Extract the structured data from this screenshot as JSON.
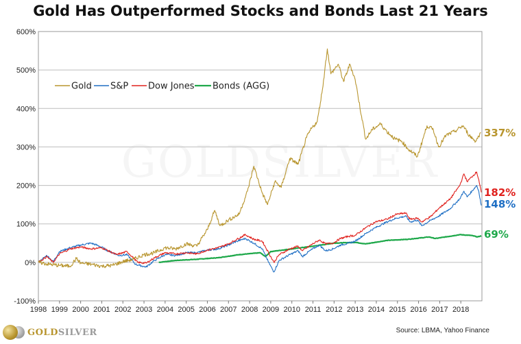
{
  "title": "Gold Has Outperformed Stocks and Bonds Last 21 Years",
  "source": "Source: LBMA, Yahoo Finance",
  "brand": {
    "gold": "GOLD",
    "silver": "SILVER"
  },
  "watermark": "GOLDSILVER",
  "chart_data": {
    "type": "line",
    "ylim": [
      -100,
      600
    ],
    "xlim": [
      1998,
      2019.0
    ],
    "y_ticks": [
      "-100%",
      "0%",
      "100%",
      "200%",
      "300%",
      "400%",
      "500%",
      "600%"
    ],
    "x_ticks": [
      "1998",
      "1999",
      "2000",
      "2001",
      "2002",
      "2003",
      "2004",
      "2005",
      "2006",
      "2007",
      "2008",
      "2009",
      "2010",
      "2011",
      "2012",
      "2013",
      "2014",
      "2015",
      "2016",
      "2017",
      "2018"
    ],
    "grid": "horizontal",
    "legend_position": "upper-left",
    "series": [
      {
        "name": "Gold",
        "color": "#b8952e",
        "end_label": "337%",
        "points": [
          [
            1998.0,
            0
          ],
          [
            1998.5,
            -5
          ],
          [
            1999.0,
            -8
          ],
          [
            1999.5,
            -10
          ],
          [
            1999.8,
            10
          ],
          [
            2000.0,
            -2
          ],
          [
            2000.5,
            -5
          ],
          [
            2001.0,
            -10
          ],
          [
            2001.5,
            -8
          ],
          [
            2002.0,
            2
          ],
          [
            2002.5,
            8
          ],
          [
            2003.0,
            20
          ],
          [
            2003.5,
            25
          ],
          [
            2004.0,
            38
          ],
          [
            2004.5,
            35
          ],
          [
            2005.0,
            48
          ],
          [
            2005.5,
            42
          ],
          [
            2006.0,
            85
          ],
          [
            2006.35,
            135
          ],
          [
            2006.6,
            95
          ],
          [
            2007.0,
            110
          ],
          [
            2007.5,
            125
          ],
          [
            2007.9,
            185
          ],
          [
            2008.2,
            250
          ],
          [
            2008.6,
            180
          ],
          [
            2008.85,
            150
          ],
          [
            2009.2,
            210
          ],
          [
            2009.5,
            195
          ],
          [
            2009.9,
            270
          ],
          [
            2010.3,
            255
          ],
          [
            2010.7,
            325
          ],
          [
            2010.95,
            350
          ],
          [
            2011.2,
            365
          ],
          [
            2011.45,
            450
          ],
          [
            2011.68,
            555
          ],
          [
            2011.85,
            490
          ],
          [
            2012.2,
            515
          ],
          [
            2012.45,
            470
          ],
          [
            2012.75,
            515
          ],
          [
            2013.0,
            475
          ],
          [
            2013.3,
            380
          ],
          [
            2013.5,
            320
          ],
          [
            2013.8,
            345
          ],
          [
            2014.2,
            360
          ],
          [
            2014.5,
            340
          ],
          [
            2014.9,
            320
          ],
          [
            2015.2,
            315
          ],
          [
            2015.5,
            295
          ],
          [
            2015.95,
            275
          ],
          [
            2016.4,
            355
          ],
          [
            2016.7,
            345
          ],
          [
            2016.95,
            300
          ],
          [
            2017.3,
            330
          ],
          [
            2017.7,
            340
          ],
          [
            2018.1,
            355
          ],
          [
            2018.4,
            330
          ],
          [
            2018.7,
            315
          ],
          [
            2018.95,
            337
          ]
        ]
      },
      {
        "name": "S&P",
        "color": "#1f6fc4",
        "end_label": "148%",
        "points": [
          [
            1998.0,
            0
          ],
          [
            1998.4,
            18
          ],
          [
            1998.7,
            2
          ],
          [
            1999.0,
            28
          ],
          [
            1999.5,
            38
          ],
          [
            2000.0,
            45
          ],
          [
            2000.5,
            50
          ],
          [
            2000.9,
            42
          ],
          [
            2001.3,
            30
          ],
          [
            2001.8,
            18
          ],
          [
            2002.2,
            20
          ],
          [
            2002.6,
            -5
          ],
          [
            2002.8,
            -8
          ],
          [
            2003.1,
            -12
          ],
          [
            2003.5,
            5
          ],
          [
            2004.0,
            20
          ],
          [
            2004.5,
            18
          ],
          [
            2005.0,
            25
          ],
          [
            2005.5,
            25
          ],
          [
            2006.0,
            32
          ],
          [
            2006.5,
            35
          ],
          [
            2007.0,
            45
          ],
          [
            2007.4,
            55
          ],
          [
            2007.8,
            62
          ],
          [
            2008.2,
            50
          ],
          [
            2008.6,
            35
          ],
          [
            2008.9,
            0
          ],
          [
            2009.15,
            -25
          ],
          [
            2009.4,
            5
          ],
          [
            2009.9,
            20
          ],
          [
            2010.3,
            30
          ],
          [
            2010.5,
            15
          ],
          [
            2010.9,
            32
          ],
          [
            2011.3,
            45
          ],
          [
            2011.6,
            30
          ],
          [
            2011.95,
            35
          ],
          [
            2012.3,
            45
          ],
          [
            2012.7,
            50
          ],
          [
            2013.0,
            55
          ],
          [
            2013.5,
            75
          ],
          [
            2013.95,
            90
          ],
          [
            2014.5,
            105
          ],
          [
            2014.95,
            115
          ],
          [
            2015.4,
            120
          ],
          [
            2015.6,
            105
          ],
          [
            2015.95,
            110
          ],
          [
            2016.15,
            95
          ],
          [
            2016.6,
            110
          ],
          [
            2016.95,
            120
          ],
          [
            2017.5,
            140
          ],
          [
            2017.95,
            165
          ],
          [
            2018.15,
            185
          ],
          [
            2018.3,
            170
          ],
          [
            2018.75,
            200
          ],
          [
            2018.85,
            185
          ],
          [
            2018.97,
            148
          ]
        ]
      },
      {
        "name": "Dow Jones",
        "color": "#e0201c",
        "end_label": "182%",
        "points": [
          [
            1998.0,
            0
          ],
          [
            1998.4,
            15
          ],
          [
            1998.7,
            0
          ],
          [
            1999.0,
            22
          ],
          [
            1999.5,
            35
          ],
          [
            2000.0,
            40
          ],
          [
            2000.5,
            35
          ],
          [
            2001.0,
            38
          ],
          [
            2001.7,
            20
          ],
          [
            2002.2,
            28
          ],
          [
            2002.7,
            0
          ],
          [
            2003.1,
            -2
          ],
          [
            2003.5,
            12
          ],
          [
            2004.0,
            25
          ],
          [
            2004.5,
            22
          ],
          [
            2005.0,
            25
          ],
          [
            2005.5,
            22
          ],
          [
            2006.0,
            32
          ],
          [
            2006.5,
            38
          ],
          [
            2007.0,
            48
          ],
          [
            2007.4,
            60
          ],
          [
            2007.8,
            72
          ],
          [
            2008.2,
            60
          ],
          [
            2008.6,
            55
          ],
          [
            2008.9,
            25
          ],
          [
            2009.15,
            0
          ],
          [
            2009.4,
            20
          ],
          [
            2009.9,
            35
          ],
          [
            2010.3,
            42
          ],
          [
            2010.5,
            30
          ],
          [
            2010.9,
            45
          ],
          [
            2011.3,
            58
          ],
          [
            2011.6,
            48
          ],
          [
            2011.95,
            50
          ],
          [
            2012.3,
            62
          ],
          [
            2012.7,
            68
          ],
          [
            2013.0,
            70
          ],
          [
            2013.5,
            90
          ],
          [
            2013.95,
            105
          ],
          [
            2014.5,
            112
          ],
          [
            2014.95,
            125
          ],
          [
            2015.4,
            128
          ],
          [
            2015.6,
            112
          ],
          [
            2015.95,
            115
          ],
          [
            2016.15,
            105
          ],
          [
            2016.6,
            120
          ],
          [
            2016.95,
            140
          ],
          [
            2017.5,
            165
          ],
          [
            2017.95,
            200
          ],
          [
            2018.15,
            230
          ],
          [
            2018.3,
            210
          ],
          [
            2018.75,
            235
          ],
          [
            2018.85,
            215
          ],
          [
            2018.97,
            182
          ]
        ]
      },
      {
        "name": "Bonds (AGG)",
        "color": "#1ea84a",
        "end_label": "69%",
        "points": [
          [
            2003.7,
            0
          ],
          [
            2004.5,
            5
          ],
          [
            2005.5,
            8
          ],
          [
            2006.5,
            12
          ],
          [
            2007.5,
            20
          ],
          [
            2008.5,
            25
          ],
          [
            2008.75,
            15
          ],
          [
            2009.0,
            28
          ],
          [
            2010.0,
            35
          ],
          [
            2011.0,
            42
          ],
          [
            2012.0,
            50
          ],
          [
            2013.0,
            52
          ],
          [
            2013.5,
            48
          ],
          [
            2014.5,
            57
          ],
          [
            2015.5,
            60
          ],
          [
            2016.5,
            66
          ],
          [
            2016.8,
            62
          ],
          [
            2017.5,
            68
          ],
          [
            2017.95,
            72
          ],
          [
            2018.5,
            70
          ],
          [
            2018.8,
            66
          ],
          [
            2018.97,
            69
          ]
        ]
      }
    ]
  }
}
